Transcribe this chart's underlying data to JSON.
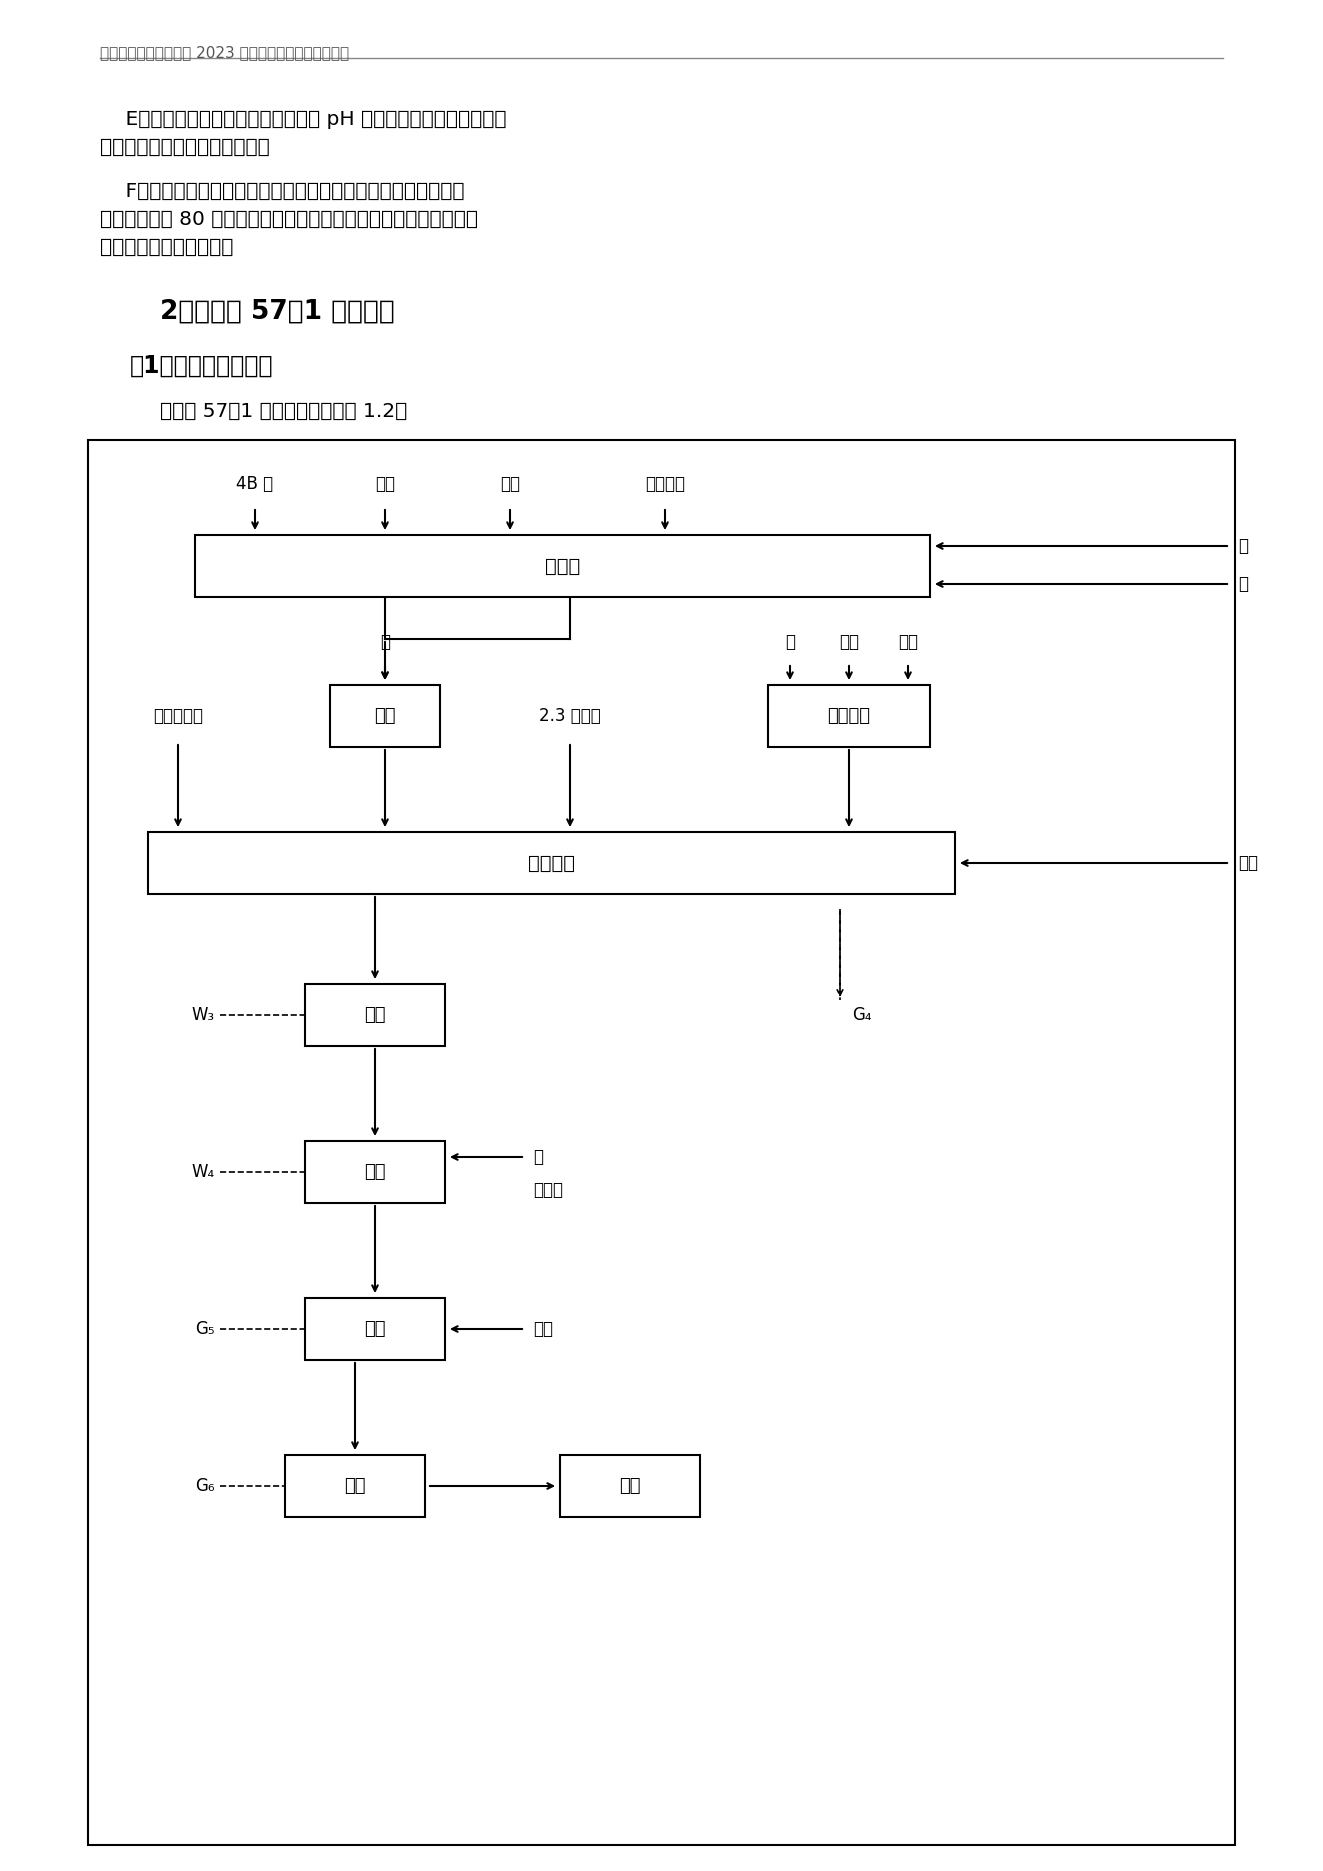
{
  "header_text": "宇虹颜料股份有限公司 2023 年度温室气体排放核查报告",
  "bg_color": "#ffffff",
  "para1_indent": "    E、滤饼在压滤机内水洗，洗至滤液 pH 呈中性，打压卸料进烘箱。",
  "para1_cont": "水洗过程中产生大量水洗废水。",
  "para2_line1": "    F、带式干燥，烘干过程中，产生大量水蒸汽。然后进粉碎机粉",
  "para2_line2": "碎，粉碎细度 80 目。粉碎过程中产生大量无组织排放的颜料尘。粉",
  "para2_line3": "碎完成，成品包装入库。",
  "section_title": "2、颜料红 57：1 生产工艺",
  "subsection_title": "（1）生产工艺流程图",
  "intro_text": "颜料红 57：1 生产工艺流程见图 1.2。"
}
